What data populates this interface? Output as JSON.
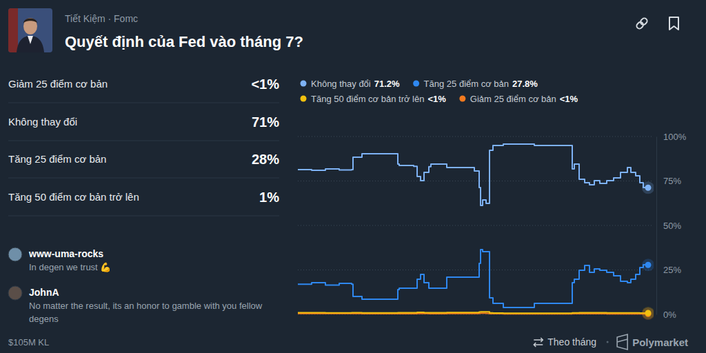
{
  "header": {
    "breadcrumb": "Tiết Kiệm · Fomc",
    "title": "Quyết định của Fed vào tháng 7?"
  },
  "outcomes": [
    {
      "name": "Giảm 25 điểm cơ bản",
      "value": "<1%"
    },
    {
      "name": "Không thay đổi",
      "value": "71%"
    },
    {
      "name": "Tăng 25 điểm cơ bản",
      "value": "28%"
    },
    {
      "name": "Tăng 50 điểm cơ bản trở lên",
      "value": "1%"
    }
  ],
  "comments": [
    {
      "user": "www-uma-rocks",
      "text": "In degen we trust 💪"
    },
    {
      "user": "JohnA",
      "text": "No matter the result, its an honor to gamble with you fellow degens"
    }
  ],
  "footer": {
    "volume": "$105M KL",
    "period": "Theo tháng",
    "brand": "Polymarket"
  },
  "chart_data": {
    "type": "line",
    "x": [
      0,
      20,
      40,
      60,
      78,
      80,
      93,
      145,
      147,
      168,
      173,
      178,
      183,
      190,
      193,
      216,
      256,
      263,
      265,
      268,
      273,
      278,
      283,
      298,
      343,
      398,
      401,
      408,
      416,
      423,
      430,
      438,
      448,
      458,
      468,
      478,
      483,
      490,
      496,
      501,
      508
    ],
    "xlim": [
      0,
      508
    ],
    "ylim": [
      0,
      100
    ],
    "yticks": [
      {
        "value": 0,
        "label": "0%"
      },
      {
        "value": 25,
        "label": "25%"
      },
      {
        "value": 50,
        "label": "50%"
      },
      {
        "value": 75,
        "label": "75%"
      },
      {
        "value": 100,
        "label": "100%"
      }
    ],
    "grid": true,
    "legend": "top",
    "tick_labels": "y",
    "series": [
      {
        "name": "Không thay đổi",
        "color": "#7eb2f5",
        "current_label": "71.2%",
        "values": [
          81.4,
          81.0,
          81.8,
          81.2,
          81.4,
          88.4,
          90.3,
          84.5,
          83.7,
          83.2,
          77.5,
          75.2,
          79.8,
          83.0,
          84.5,
          82.6,
          80.6,
          71.3,
          61.2,
          64.3,
          62.4,
          92.2,
          95.0,
          95.7,
          95.0,
          81.8,
          84.5,
          76.0,
          74.0,
          72.9,
          75.2,
          73.6,
          75.2,
          76.7,
          79.8,
          82.6,
          79.8,
          77.9,
          74.0,
          71.3,
          71.2
        ]
      },
      {
        "name": "Tăng 25 điểm cơ bản",
        "color": "#2f88f0",
        "current_label": "27.8%",
        "values": [
          17.0,
          17.8,
          16.5,
          17.4,
          17.0,
          10.1,
          8.5,
          14.0,
          14.7,
          14.7,
          19.8,
          22.5,
          17.8,
          14.7,
          14.7,
          20.9,
          20.9,
          28.7,
          36.4,
          35.3,
          35.3,
          9.3,
          6.2,
          3.9,
          6.2,
          17.8,
          19.8,
          24.8,
          27.5,
          23.6,
          25.6,
          24.8,
          23.6,
          21.7,
          18.6,
          17.8,
          19.8,
          22.5,
          26.4,
          27.9,
          27.8
        ]
      },
      {
        "name": "Tăng 50 điểm cơ bản trở lên",
        "color": "#f2c10f",
        "current_label": "<1%",
        "values": [
          1.0,
          1.0,
          0.9,
          0.9,
          1.0,
          1.0,
          0.9,
          1.0,
          1.0,
          1.0,
          1.2,
          1.2,
          1.0,
          1.0,
          1.0,
          1.1,
          1.1,
          1.4,
          1.5,
          1.5,
          1.5,
          0.9,
          0.8,
          0.7,
          0.7,
          0.9,
          0.9,
          1.0,
          1.0,
          1.0,
          1.0,
          1.0,
          0.9,
          0.9,
          0.9,
          0.9,
          0.9,
          0.9,
          0.8,
          0.8,
          0.8
        ]
      },
      {
        "name": "Giảm 25 điểm cơ bản",
        "color": "#f47a1f",
        "current_label": "<1%",
        "values": [
          0.5,
          0.5,
          0.5,
          0.5,
          0.5,
          0.5,
          0.4,
          0.4,
          0.4,
          0.4,
          0.5,
          0.5,
          0.5,
          0.4,
          0.4,
          0.5,
          0.5,
          0.6,
          0.7,
          0.7,
          0.6,
          0.4,
          0.4,
          0.3,
          0.3,
          0.4,
          0.4,
          0.4,
          0.4,
          0.4,
          0.4,
          0.4,
          0.3,
          0.3,
          0.3,
          0.3,
          0.3,
          0.3,
          0.3,
          0.3,
          0.3
        ]
      }
    ]
  }
}
